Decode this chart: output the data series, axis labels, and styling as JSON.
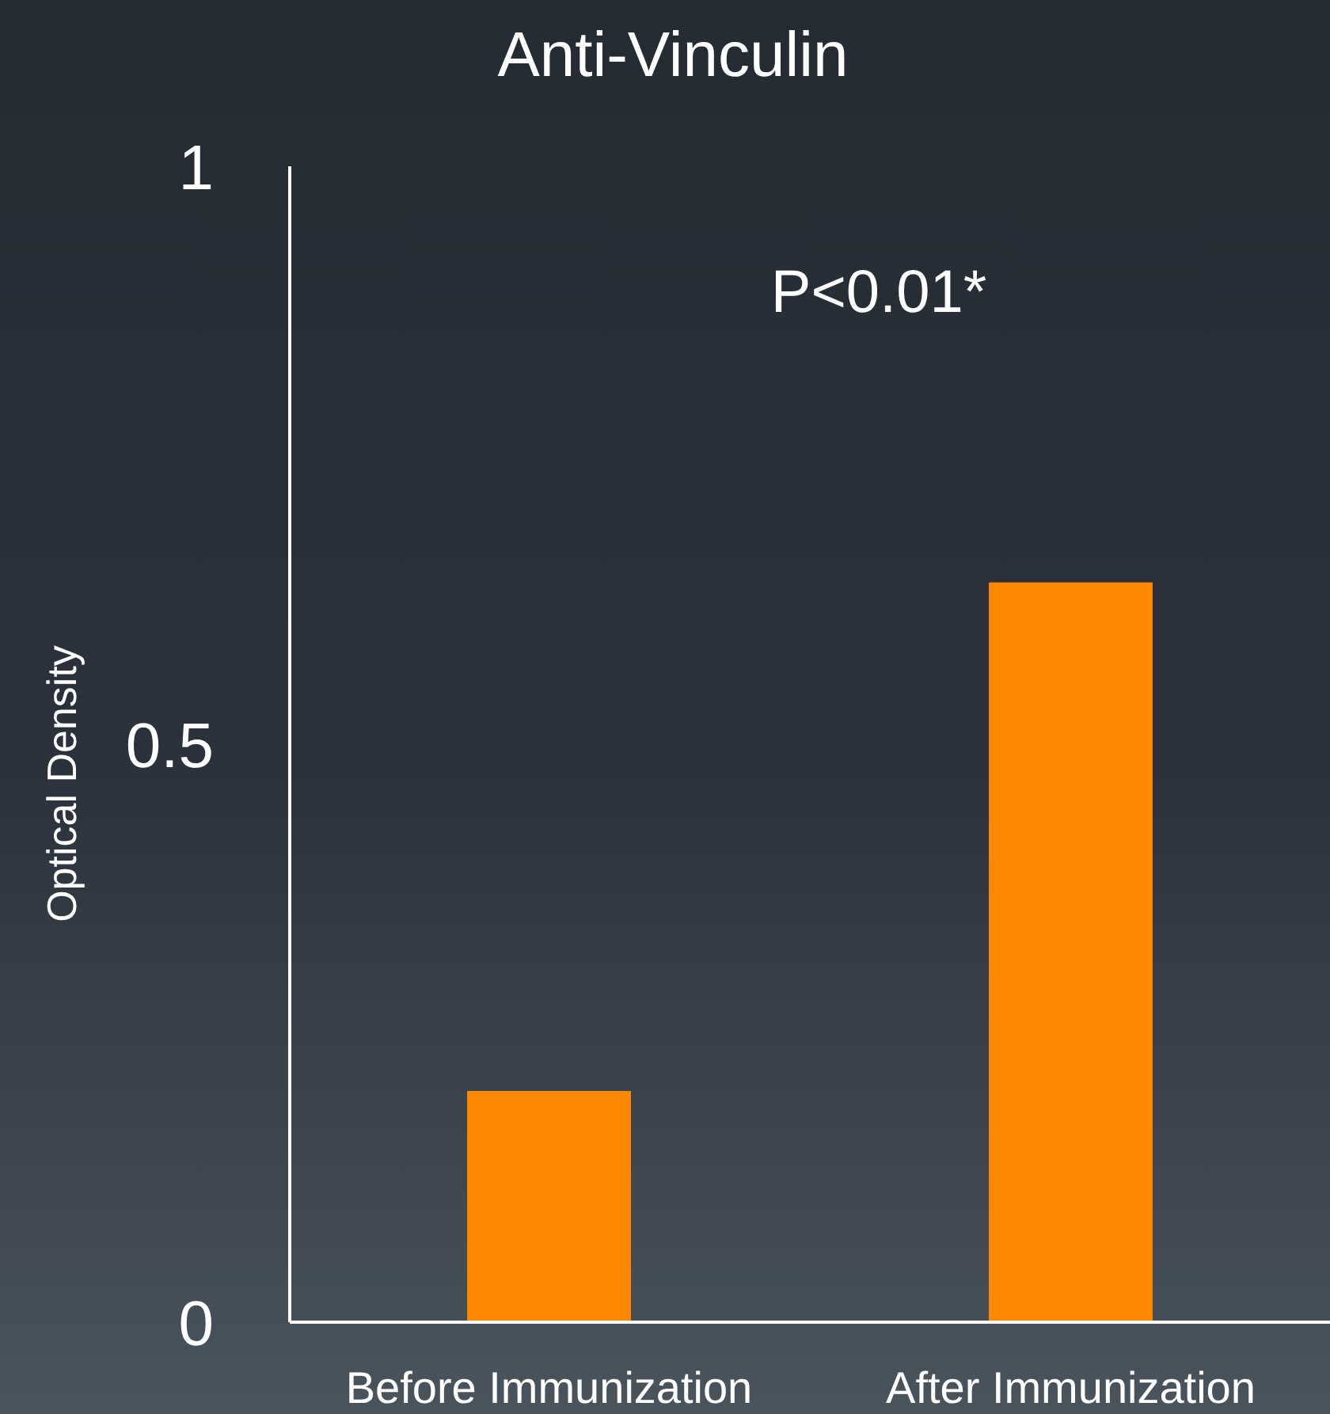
{
  "chart_data": {
    "type": "bar",
    "title": "Anti-Vinculin",
    "ylabel": "Optical Density",
    "categories": [
      "Before Immunization",
      "After Immunization"
    ],
    "values": [
      0.2,
      0.64
    ],
    "color": "#ff8800",
    "ylim": [
      0,
      1
    ],
    "yticks": [
      0,
      0.5,
      1
    ],
    "grid": false,
    "annotations": [
      "P<0.01*"
    ]
  }
}
